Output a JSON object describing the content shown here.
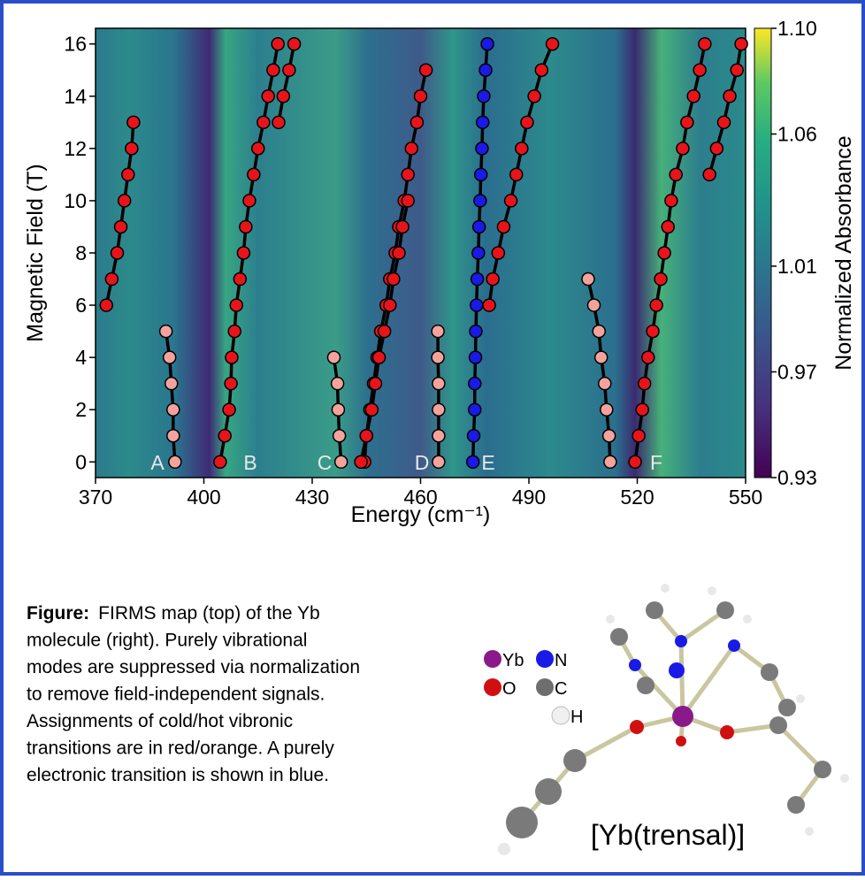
{
  "chart_data": {
    "type": "line",
    "xlabel": "Energy (cm⁻¹)",
    "ylabel": "Magnetic Field (T)",
    "xlim": [
      370,
      550
    ],
    "ylim": [
      -0.6,
      16.6
    ],
    "xticks": [
      370,
      400,
      430,
      460,
      490,
      520,
      550
    ],
    "yticks": [
      0,
      2,
      4,
      6,
      8,
      10,
      12,
      14,
      16
    ],
    "annotations": [
      "A",
      "B",
      "C",
      "D",
      "E",
      "F"
    ],
    "colorbar": {
      "label": "Normalized Absorbance",
      "lim": [
        0.93,
        1.1
      ],
      "ticks": [
        {
          "value": 1.1,
          "label": "1.10"
        },
        1.06,
        1.01,
        0.97,
        0.93
      ]
    },
    "series": [
      {
        "color": "#e8141b",
        "x": [
          373,
          374.5,
          376,
          377,
          378,
          379,
          380,
          380.5
        ],
        "values": [
          6,
          7,
          8,
          9,
          10,
          11,
          12,
          13
        ]
      },
      {
        "color": "#f4a39c",
        "x": [
          392,
          391.5,
          391.5,
          391,
          390.5,
          389.5
        ],
        "values": [
          0,
          1,
          2,
          3,
          4,
          5
        ]
      },
      {
        "color": "#e8141b",
        "x": [
          404.5,
          405.8,
          407,
          407.5,
          407.7,
          408.5,
          409,
          410,
          411,
          411.6,
          412.6,
          413.8,
          415,
          416.5,
          417.8,
          419.2,
          420.5
        ],
        "values": [
          0,
          1,
          2,
          3,
          4,
          5,
          6,
          7,
          8,
          9,
          10,
          11,
          12,
          13,
          14,
          15,
          16
        ]
      },
      {
        "color": "#e8141b",
        "x": [
          420.7,
          422,
          423.6,
          425
        ],
        "values": [
          13,
          14,
          15,
          16
        ]
      },
      {
        "color": "#f4a39c",
        "x": [
          438,
          437.5,
          437.2,
          437,
          436
        ],
        "values": [
          0,
          1,
          2,
          3,
          4
        ]
      },
      {
        "color": "#e8141b",
        "x": [
          444.5,
          445,
          446,
          447,
          448,
          449,
          450.5,
          451.5,
          453,
          454,
          455.5,
          456.5,
          457.5,
          459,
          460,
          461.5
        ],
        "values": [
          0,
          1,
          2,
          3,
          4,
          5,
          6,
          7,
          8,
          9,
          10,
          11,
          12,
          13,
          14,
          15
        ]
      },
      {
        "color": "#e8141b",
        "x": [
          443.5,
          445,
          446.5,
          447.5,
          448.5,
          450,
          451.5,
          452.5,
          454,
          455,
          456.5
        ],
        "values": [
          0,
          1,
          2,
          3,
          4,
          5,
          6,
          7,
          8,
          9,
          10
        ]
      },
      {
        "color": "#f4a39c",
        "x": [
          465,
          465,
          465,
          465,
          464.8,
          464.8
        ],
        "values": [
          0,
          1,
          2,
          3,
          4,
          5
        ]
      },
      {
        "color": "#1a1ae6",
        "x": [
          474.5,
          474.7,
          475,
          475,
          475.2,
          475.3,
          475.5,
          475.7,
          476,
          476.2,
          476.5,
          476.7,
          477,
          477.2,
          477.5,
          478,
          478.5
        ],
        "values": [
          0,
          1,
          2,
          3,
          4,
          5,
          6,
          7,
          8,
          9,
          10,
          11,
          12,
          13,
          14,
          15,
          16
        ]
      },
      {
        "color": "#e8141b",
        "x": [
          479,
          480,
          481.5,
          483,
          485,
          486.5,
          488,
          489.5,
          491.5,
          493.5,
          496.5
        ],
        "values": [
          6,
          7,
          8,
          9,
          10,
          11,
          12,
          13,
          14,
          15,
          16
        ]
      },
      {
        "color": "#f4a39c",
        "x": [
          512.5,
          512.2,
          511.5,
          511,
          510,
          509.4,
          508,
          506.4
        ],
        "values": [
          0,
          1,
          2,
          3,
          4,
          5,
          6,
          7
        ]
      },
      {
        "color": "#e8141b",
        "x": [
          519.4,
          520.4,
          521.4,
          522,
          523,
          524.3,
          525.3,
          526.5,
          527.5,
          528.5,
          529.4,
          530.7,
          532.6,
          533.8,
          535.6,
          537.3,
          538.7
        ],
        "values": [
          0,
          1,
          2,
          3,
          4,
          5,
          6,
          7,
          8,
          9,
          10,
          11,
          12,
          13,
          14,
          15,
          16
        ]
      },
      {
        "color": "#e8141b",
        "x": [
          540,
          542,
          544,
          545.6,
          547.6,
          548.8
        ],
        "values": [
          11,
          12,
          13,
          14,
          15,
          16
        ]
      }
    ]
  },
  "caption": {
    "label": "Figure:",
    "lines": [
      "FIRMS map (top) of the Yb",
      "molecule (right). Purely vibrational",
      "modes are suppressed via normalization",
      "to remove field-independent signals.",
      "Assignments of cold/hot vibronic",
      "transitions are in red/orange. A purely",
      "electronic transition is shown in blue."
    ]
  },
  "molecule": {
    "title": "[Yb(trensal)]",
    "legend": [
      "Yb",
      "N",
      "O",
      "C",
      "H"
    ]
  }
}
